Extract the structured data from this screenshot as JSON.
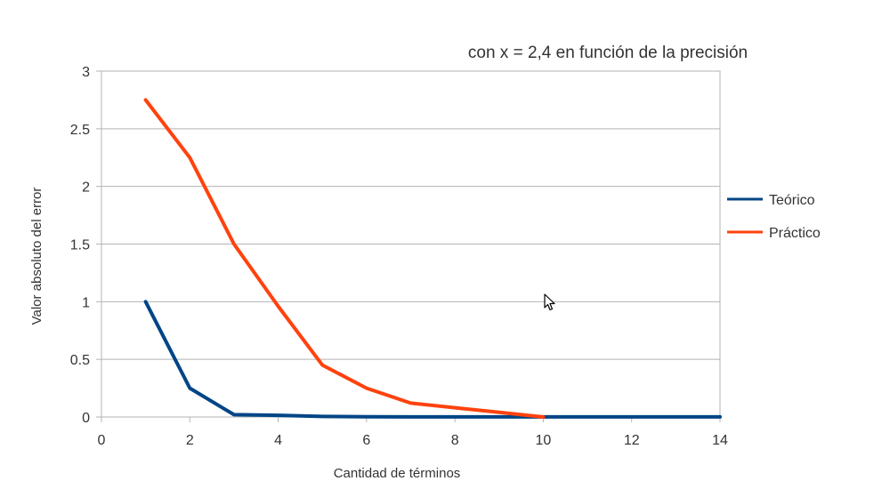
{
  "chart_data": {
    "type": "line",
    "title": "con x = 2,4 en función de la precisión",
    "xlabel": "Cantidad de términos",
    "ylabel": "Valor absoluto del error",
    "xlim": [
      0,
      14
    ],
    "ylim": [
      0,
      3
    ],
    "xticks": [
      "0",
      "2",
      "4",
      "6",
      "8",
      "10",
      "12",
      "14"
    ],
    "yticks": [
      "0",
      "0.5",
      "1",
      "1.5",
      "2",
      "2.5",
      "3"
    ],
    "grid": true,
    "legend": "right",
    "series": [
      {
        "name": "Teórico",
        "color": "#004586",
        "x": [
          1,
          2,
          3,
          4,
          5,
          6,
          7,
          8,
          9,
          10,
          11,
          12,
          13,
          14
        ],
        "y": [
          1.0,
          0.25,
          0.02,
          0.015,
          0.005,
          0.002,
          0.001,
          0.001,
          0.001,
          0.001,
          0.001,
          0.001,
          0.001,
          0.001
        ]
      },
      {
        "name": "Práctico",
        "color": "#ff420e",
        "x": [
          1,
          2,
          3,
          4,
          5,
          6,
          7,
          8,
          9,
          10
        ],
        "y": [
          2.75,
          2.25,
          1.5,
          0.96,
          0.45,
          0.25,
          0.12,
          0.08,
          0.04,
          0.0
        ]
      }
    ]
  }
}
